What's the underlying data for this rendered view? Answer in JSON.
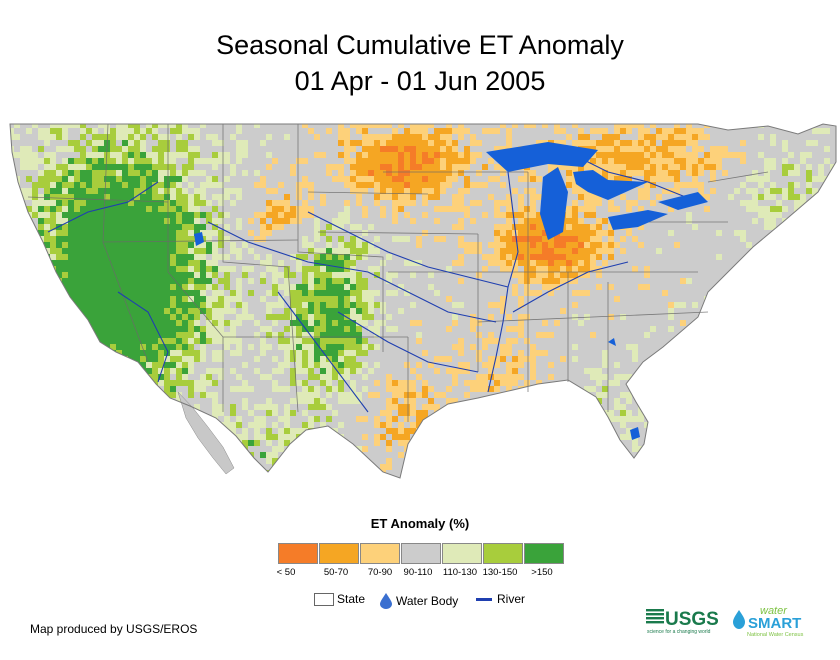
{
  "title": {
    "line1": "Seasonal Cumulative ET Anomaly",
    "line2": "01 Apr - 01 Jun 2005"
  },
  "legend": {
    "title": "ET Anomaly (%)",
    "classes": [
      {
        "label": "< 50",
        "color": "#f57c28"
      },
      {
        "label": "50-70",
        "color": "#f5a623"
      },
      {
        "label": "70-90",
        "color": "#fdd17a"
      },
      {
        "label": "90-110",
        "color": "#cccccc"
      },
      {
        "label": "110-130",
        "color": "#dfeab8"
      },
      {
        "label": "130-150",
        "color": "#a8cd3c"
      },
      {
        "label": ">150",
        "color": "#3aa33a"
      }
    ]
  },
  "features": {
    "state": "State",
    "water_body": "Water Body",
    "river": "River"
  },
  "colors": {
    "water": "#1560d8",
    "river": "#1f3fb0",
    "usgs_green": "#1a7a4c",
    "watersmart_blue": "#2aa0d8",
    "watersmart_green": "#7dc242"
  },
  "credit": "Map produced by USGS/EROS",
  "logos": {
    "usgs": "USGS",
    "usgs_tagline": "science for a changing world",
    "watersmart_top": "water",
    "watersmart_main": "SMART",
    "watersmart_sub": "National Water Census"
  }
}
